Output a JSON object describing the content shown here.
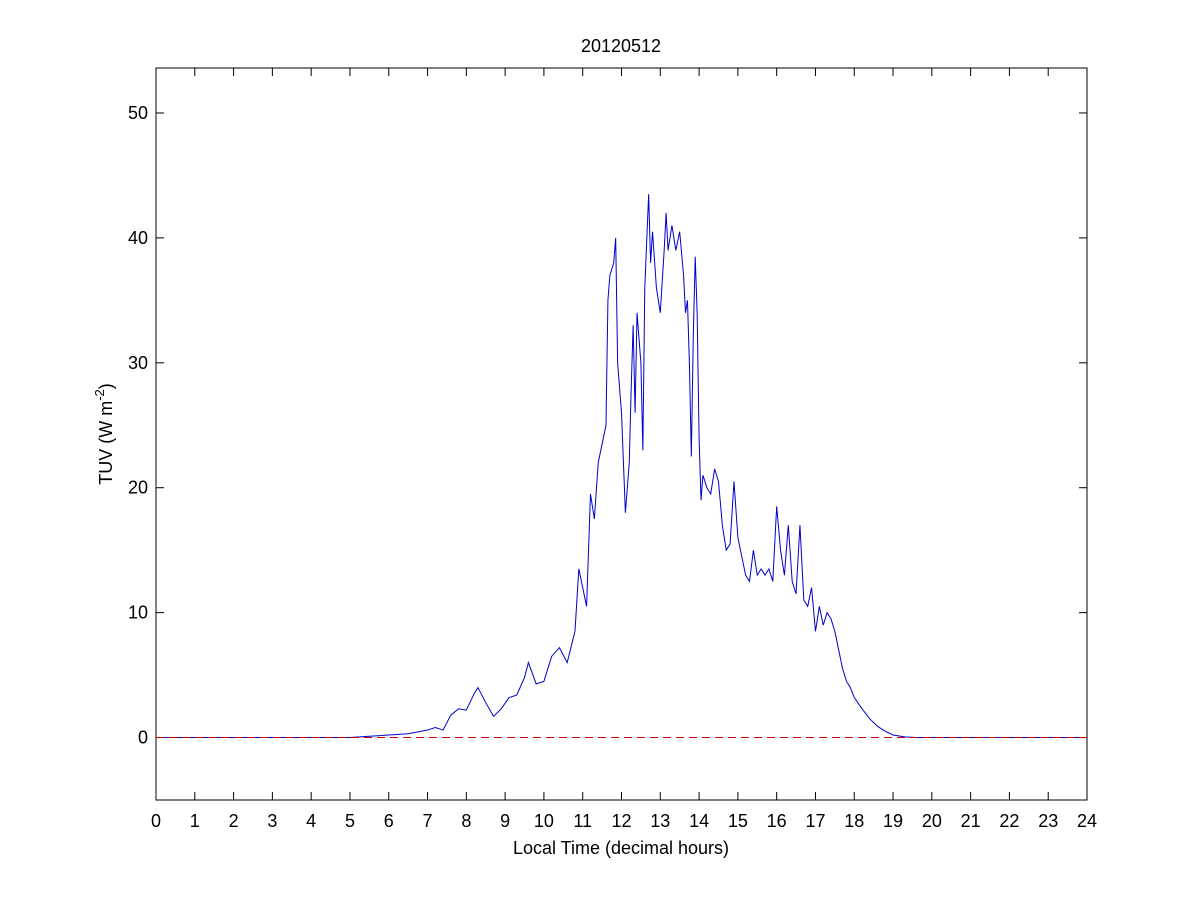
{
  "chart_data": {
    "type": "line",
    "title": "20120512",
    "x_label": "Local Time (decimal hours)",
    "y_label": {
      "text": "TUV (W m",
      "superscript": "-2",
      "suffix": ")"
    },
    "xlim": [
      0,
      24
    ],
    "xticks": [
      0,
      1,
      2,
      3,
      4,
      5,
      6,
      7,
      8,
      9,
      10,
      11,
      12,
      13,
      14,
      15,
      16,
      17,
      18,
      19,
      20,
      21,
      22,
      23,
      24
    ],
    "ylim": [
      -5,
      53.6
    ],
    "yticks": [
      0,
      10,
      20,
      30,
      40,
      50
    ],
    "series": [
      {
        "color": "#0000cc",
        "dash": false,
        "x": [
          0,
          5,
          5.5,
          6,
          6.5,
          7,
          7.2,
          7.4,
          7.6,
          7.8,
          8.0,
          8.2,
          8.3,
          8.5,
          8.7,
          8.9,
          9.1,
          9.3,
          9.5,
          9.6,
          9.8,
          10.0,
          10.2,
          10.4,
          10.6,
          10.8,
          10.9,
          11.0,
          11.1,
          11.2,
          11.3,
          11.4,
          11.5,
          11.6,
          11.65,
          11.7,
          11.8,
          11.85,
          11.9,
          12.0,
          12.1,
          12.2,
          12.25,
          12.3,
          12.35,
          12.4,
          12.5,
          12.55,
          12.6,
          12.7,
          12.75,
          12.8,
          12.9,
          13.0,
          13.1,
          13.15,
          13.2,
          13.3,
          13.4,
          13.5,
          13.6,
          13.65,
          13.7,
          13.75,
          13.8,
          13.85,
          13.9,
          13.95,
          14.0,
          14.05,
          14.1,
          14.2,
          14.3,
          14.4,
          14.5,
          14.6,
          14.7,
          14.8,
          14.9,
          15.0,
          15.1,
          15.2,
          15.3,
          15.4,
          15.5,
          15.6,
          15.7,
          15.8,
          15.9,
          16.0,
          16.1,
          16.2,
          16.3,
          16.4,
          16.5,
          16.6,
          16.7,
          16.8,
          16.9,
          17.0,
          17.1,
          17.2,
          17.3,
          17.4,
          17.5,
          17.6,
          17.7,
          17.8,
          17.9,
          18.0,
          18.2,
          18.4,
          18.6,
          18.8,
          19.0,
          19.3,
          19.6,
          24
        ],
        "values": [
          0,
          0,
          0.1,
          0.2,
          0.3,
          0.6,
          0.8,
          0.6,
          1.8,
          2.3,
          2.2,
          3.5,
          4.0,
          2.8,
          1.7,
          2.3,
          3.2,
          3.4,
          4.8,
          6.0,
          4.3,
          4.5,
          6.5,
          7.2,
          6.0,
          8.5,
          13.5,
          12,
          10.5,
          19.5,
          17.5,
          22,
          23.5,
          25,
          35,
          37,
          38,
          40,
          30,
          26,
          18,
          22,
          28,
          33,
          26,
          34,
          30,
          23,
          36,
          43.5,
          38,
          40.5,
          36,
          34,
          39,
          42,
          39,
          41,
          39,
          40.5,
          37,
          34,
          35,
          30,
          22.5,
          32,
          38.5,
          34,
          24,
          19,
          21,
          20,
          19.5,
          21.5,
          20.5,
          17,
          15,
          15.5,
          20.5,
          16,
          14.5,
          13,
          12.5,
          15,
          13,
          13.5,
          13,
          13.5,
          12.5,
          18.5,
          15,
          13,
          17,
          12.5,
          11.5,
          17,
          11,
          10.5,
          12,
          8.5,
          10.5,
          9,
          10,
          9.5,
          8.5,
          7,
          5.5,
          4.5,
          4,
          3.2,
          2.3,
          1.5,
          0.9,
          0.5,
          0.2,
          0.05,
          0,
          0
        ]
      },
      {
        "color": "#cc0000",
        "dash": true,
        "x": [
          0,
          24
        ],
        "values": [
          0,
          0
        ]
      }
    ]
  }
}
